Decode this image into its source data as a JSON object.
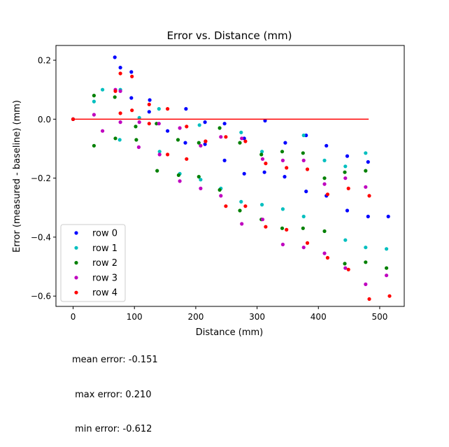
{
  "chart_data": {
    "type": "scatter",
    "title": "Error vs. Distance (mm)",
    "xlabel": "Distance (mm)",
    "ylabel": "Error (measured - baseline) (mm)",
    "xlim": [
      -28,
      540
    ],
    "ylim": [
      -0.635,
      0.25
    ],
    "xticks": [
      0,
      100,
      200,
      300,
      400,
      500
    ],
    "yticks": [
      0.2,
      0.0,
      -0.2,
      -0.4,
      -0.6
    ],
    "xtick_labels": [
      "0",
      "100",
      "200",
      "300",
      "400",
      "500"
    ],
    "ytick_labels": [
      "0.2",
      "0.0",
      "−0.2",
      "−0.4",
      "−0.6"
    ],
    "grid": false,
    "legend_position": "lower-left",
    "reference_line": {
      "x": [
        0,
        482
      ],
      "y": [
        0,
        0
      ],
      "color": "#ff0000"
    },
    "series": [
      {
        "name": "row 0",
        "color": "#0000ff",
        "points": [
          [
            0,
            0
          ],
          [
            68,
            0.21
          ],
          [
            77,
            0.175
          ],
          [
            95,
            0.16
          ],
          [
            95,
            0.072
          ],
          [
            125,
            0.065
          ],
          [
            124,
            0.025
          ],
          [
            154,
            -0.04
          ],
          [
            184,
            0.035
          ],
          [
            183,
            -0.08
          ],
          [
            215,
            -0.01
          ],
          [
            215,
            -0.085
          ],
          [
            247,
            -0.015
          ],
          [
            247,
            -0.14
          ],
          [
            279,
            -0.065
          ],
          [
            279,
            -0.185
          ],
          [
            313,
            -0.005
          ],
          [
            312,
            -0.18
          ],
          [
            346,
            -0.08
          ],
          [
            345,
            -0.195
          ],
          [
            380,
            -0.055
          ],
          [
            380,
            -0.245
          ],
          [
            413,
            -0.09
          ],
          [
            413,
            -0.26
          ],
          [
            447,
            -0.125
          ],
          [
            447,
            -0.31
          ],
          [
            481,
            -0.145
          ],
          [
            481,
            -0.33
          ],
          [
            514,
            -0.33
          ]
        ]
      },
      {
        "name": "row 1",
        "color": "#00bfbf",
        "points": [
          [
            0,
            0
          ],
          [
            34,
            0.06
          ],
          [
            48,
            0.1
          ],
          [
            77,
            0.1
          ],
          [
            76,
            -0.07
          ],
          [
            108,
            0.005
          ],
          [
            140,
            0.035
          ],
          [
            141,
            -0.11
          ],
          [
            174,
            -0.185
          ],
          [
            206,
            -0.02
          ],
          [
            208,
            -0.205
          ],
          [
            241,
            -0.235
          ],
          [
            274,
            -0.045
          ],
          [
            274,
            -0.28
          ],
          [
            308,
            -0.11
          ],
          [
            308,
            -0.29
          ],
          [
            342,
            -0.305
          ],
          [
            376,
            -0.055
          ],
          [
            376,
            -0.33
          ],
          [
            410,
            -0.14
          ],
          [
            444,
            -0.16
          ],
          [
            444,
            -0.41
          ],
          [
            477,
            -0.115
          ],
          [
            477,
            -0.435
          ],
          [
            511,
            -0.44
          ]
        ]
      },
      {
        "name": "row 2",
        "color": "#008000",
        "points": [
          [
            0,
            0
          ],
          [
            34,
            0.08
          ],
          [
            34,
            -0.09
          ],
          [
            68,
            0.075
          ],
          [
            69,
            -0.065
          ],
          [
            102,
            -0.025
          ],
          [
            103,
            -0.07
          ],
          [
            136,
            -0.015
          ],
          [
            137,
            -0.175
          ],
          [
            171,
            -0.07
          ],
          [
            172,
            -0.19
          ],
          [
            205,
            -0.08
          ],
          [
            205,
            -0.195
          ],
          [
            239,
            -0.03
          ],
          [
            239,
            -0.24
          ],
          [
            272,
            -0.08
          ],
          [
            272,
            -0.31
          ],
          [
            307,
            -0.12
          ],
          [
            307,
            -0.34
          ],
          [
            341,
            -0.11
          ],
          [
            341,
            -0.37
          ],
          [
            375,
            -0.115
          ],
          [
            375,
            -0.37
          ],
          [
            410,
            -0.2
          ],
          [
            410,
            -0.38
          ],
          [
            443,
            -0.18
          ],
          [
            443,
            -0.49
          ],
          [
            477,
            -0.175
          ],
          [
            477,
            -0.485
          ],
          [
            511,
            -0.505
          ]
        ]
      },
      {
        "name": "row 3",
        "color": "#bf00bf",
        "points": [
          [
            0,
            0
          ],
          [
            34,
            0.015
          ],
          [
            48,
            -0.04
          ],
          [
            69,
            0.1
          ],
          [
            77,
            0.095
          ],
          [
            77,
            -0.01
          ],
          [
            107,
            -0.095
          ],
          [
            108,
            -0.01
          ],
          [
            140,
            -0.015
          ],
          [
            141,
            -0.12
          ],
          [
            174,
            -0.03
          ],
          [
            174,
            -0.21
          ],
          [
            208,
            -0.09
          ],
          [
            208,
            -0.235
          ],
          [
            241,
            -0.06
          ],
          [
            241,
            -0.26
          ],
          [
            275,
            -0.065
          ],
          [
            275,
            -0.355
          ],
          [
            309,
            -0.135
          ],
          [
            309,
            -0.34
          ],
          [
            342,
            -0.14
          ],
          [
            342,
            -0.425
          ],
          [
            376,
            -0.14
          ],
          [
            376,
            -0.435
          ],
          [
            410,
            -0.22
          ],
          [
            410,
            -0.455
          ],
          [
            444,
            -0.2
          ],
          [
            444,
            -0.505
          ],
          [
            477,
            -0.23
          ],
          [
            477,
            -0.56
          ],
          [
            511,
            -0.53
          ]
        ]
      },
      {
        "name": "row 4",
        "color": "#ff0000",
        "points": [
          [
            0,
            0
          ],
          [
            69,
            0.095
          ],
          [
            77,
            0.155
          ],
          [
            77,
            0.02
          ],
          [
            96,
            0.145
          ],
          [
            96,
            0.03
          ],
          [
            124,
            0.05
          ],
          [
            124,
            -0.015
          ],
          [
            154,
            0.035
          ],
          [
            154,
            -0.12
          ],
          [
            185,
            -0.025
          ],
          [
            185,
            -0.135
          ],
          [
            216,
            -0.075
          ],
          [
            216,
            -0.075
          ],
          [
            249,
            -0.06
          ],
          [
            249,
            -0.295
          ],
          [
            281,
            -0.075
          ],
          [
            281,
            -0.295
          ],
          [
            314,
            -0.15
          ],
          [
            314,
            -0.365
          ],
          [
            348,
            -0.165
          ],
          [
            348,
            -0.375
          ],
          [
            382,
            -0.17
          ],
          [
            382,
            -0.42
          ],
          [
            415,
            -0.255
          ],
          [
            415,
            -0.47
          ],
          [
            449,
            -0.235
          ],
          [
            449,
            -0.51
          ],
          [
            483,
            -0.26
          ],
          [
            483,
            -0.61
          ],
          [
            516,
            -0.6
          ]
        ]
      }
    ]
  },
  "stats": {
    "mean": "mean error: -0.151",
    "max": " max error: 0.210",
    "min": " min error: -0.612"
  }
}
